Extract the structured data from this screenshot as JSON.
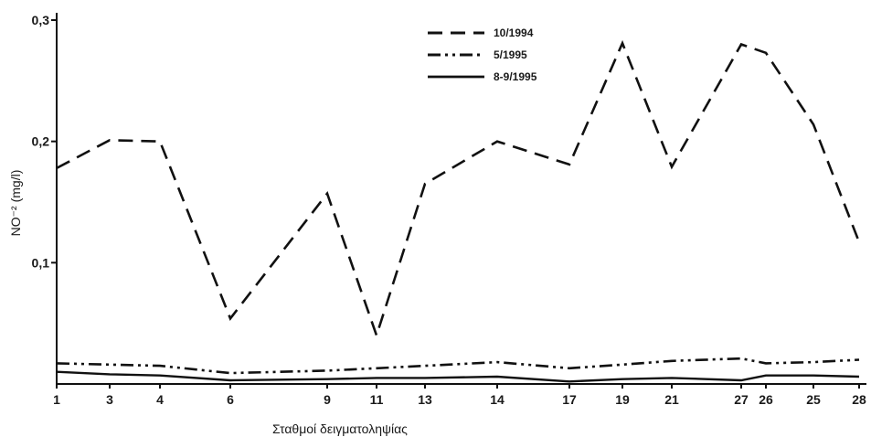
{
  "chart_data": {
    "type": "line",
    "categories": [
      "1",
      "3",
      "4",
      "6",
      "9",
      "11",
      "13",
      "14",
      "17",
      "19",
      "21",
      "27",
      "26",
      "25",
      "28"
    ],
    "series": [
      {
        "name": "10/1994",
        "style": "dashed",
        "values": [
          0.178,
          0.201,
          0.2,
          0.054,
          0.157,
          0.04,
          0.165,
          0.2,
          0.181,
          0.281,
          0.179,
          0.28,
          0.273,
          0.214,
          0.117
        ]
      },
      {
        "name": "5/1995",
        "style": "dash-dot-dot",
        "values": [
          0.017,
          0.016,
          0.015,
          0.009,
          0.011,
          0.013,
          0.015,
          0.018,
          0.013,
          0.016,
          0.019,
          0.021,
          0.017,
          0.018,
          0.02
        ]
      },
      {
        "name": "8-9/1995",
        "style": "solid",
        "values": [
          0.01,
          0.008,
          0.007,
          0.003,
          0.004,
          0.005,
          0.005,
          0.006,
          0.002,
          0.004,
          0.005,
          0.003,
          0.007,
          0.007,
          0.006
        ]
      }
    ],
    "xlabel": "Σταθμοί δειγματοληψίας",
    "ylabel": "NO⁻² (mg/l)",
    "ylim": [
      0,
      0.3
    ],
    "yticks": [
      "0,1",
      "0,2",
      "0,3"
    ],
    "grid": false,
    "legend_position": "top-center"
  }
}
